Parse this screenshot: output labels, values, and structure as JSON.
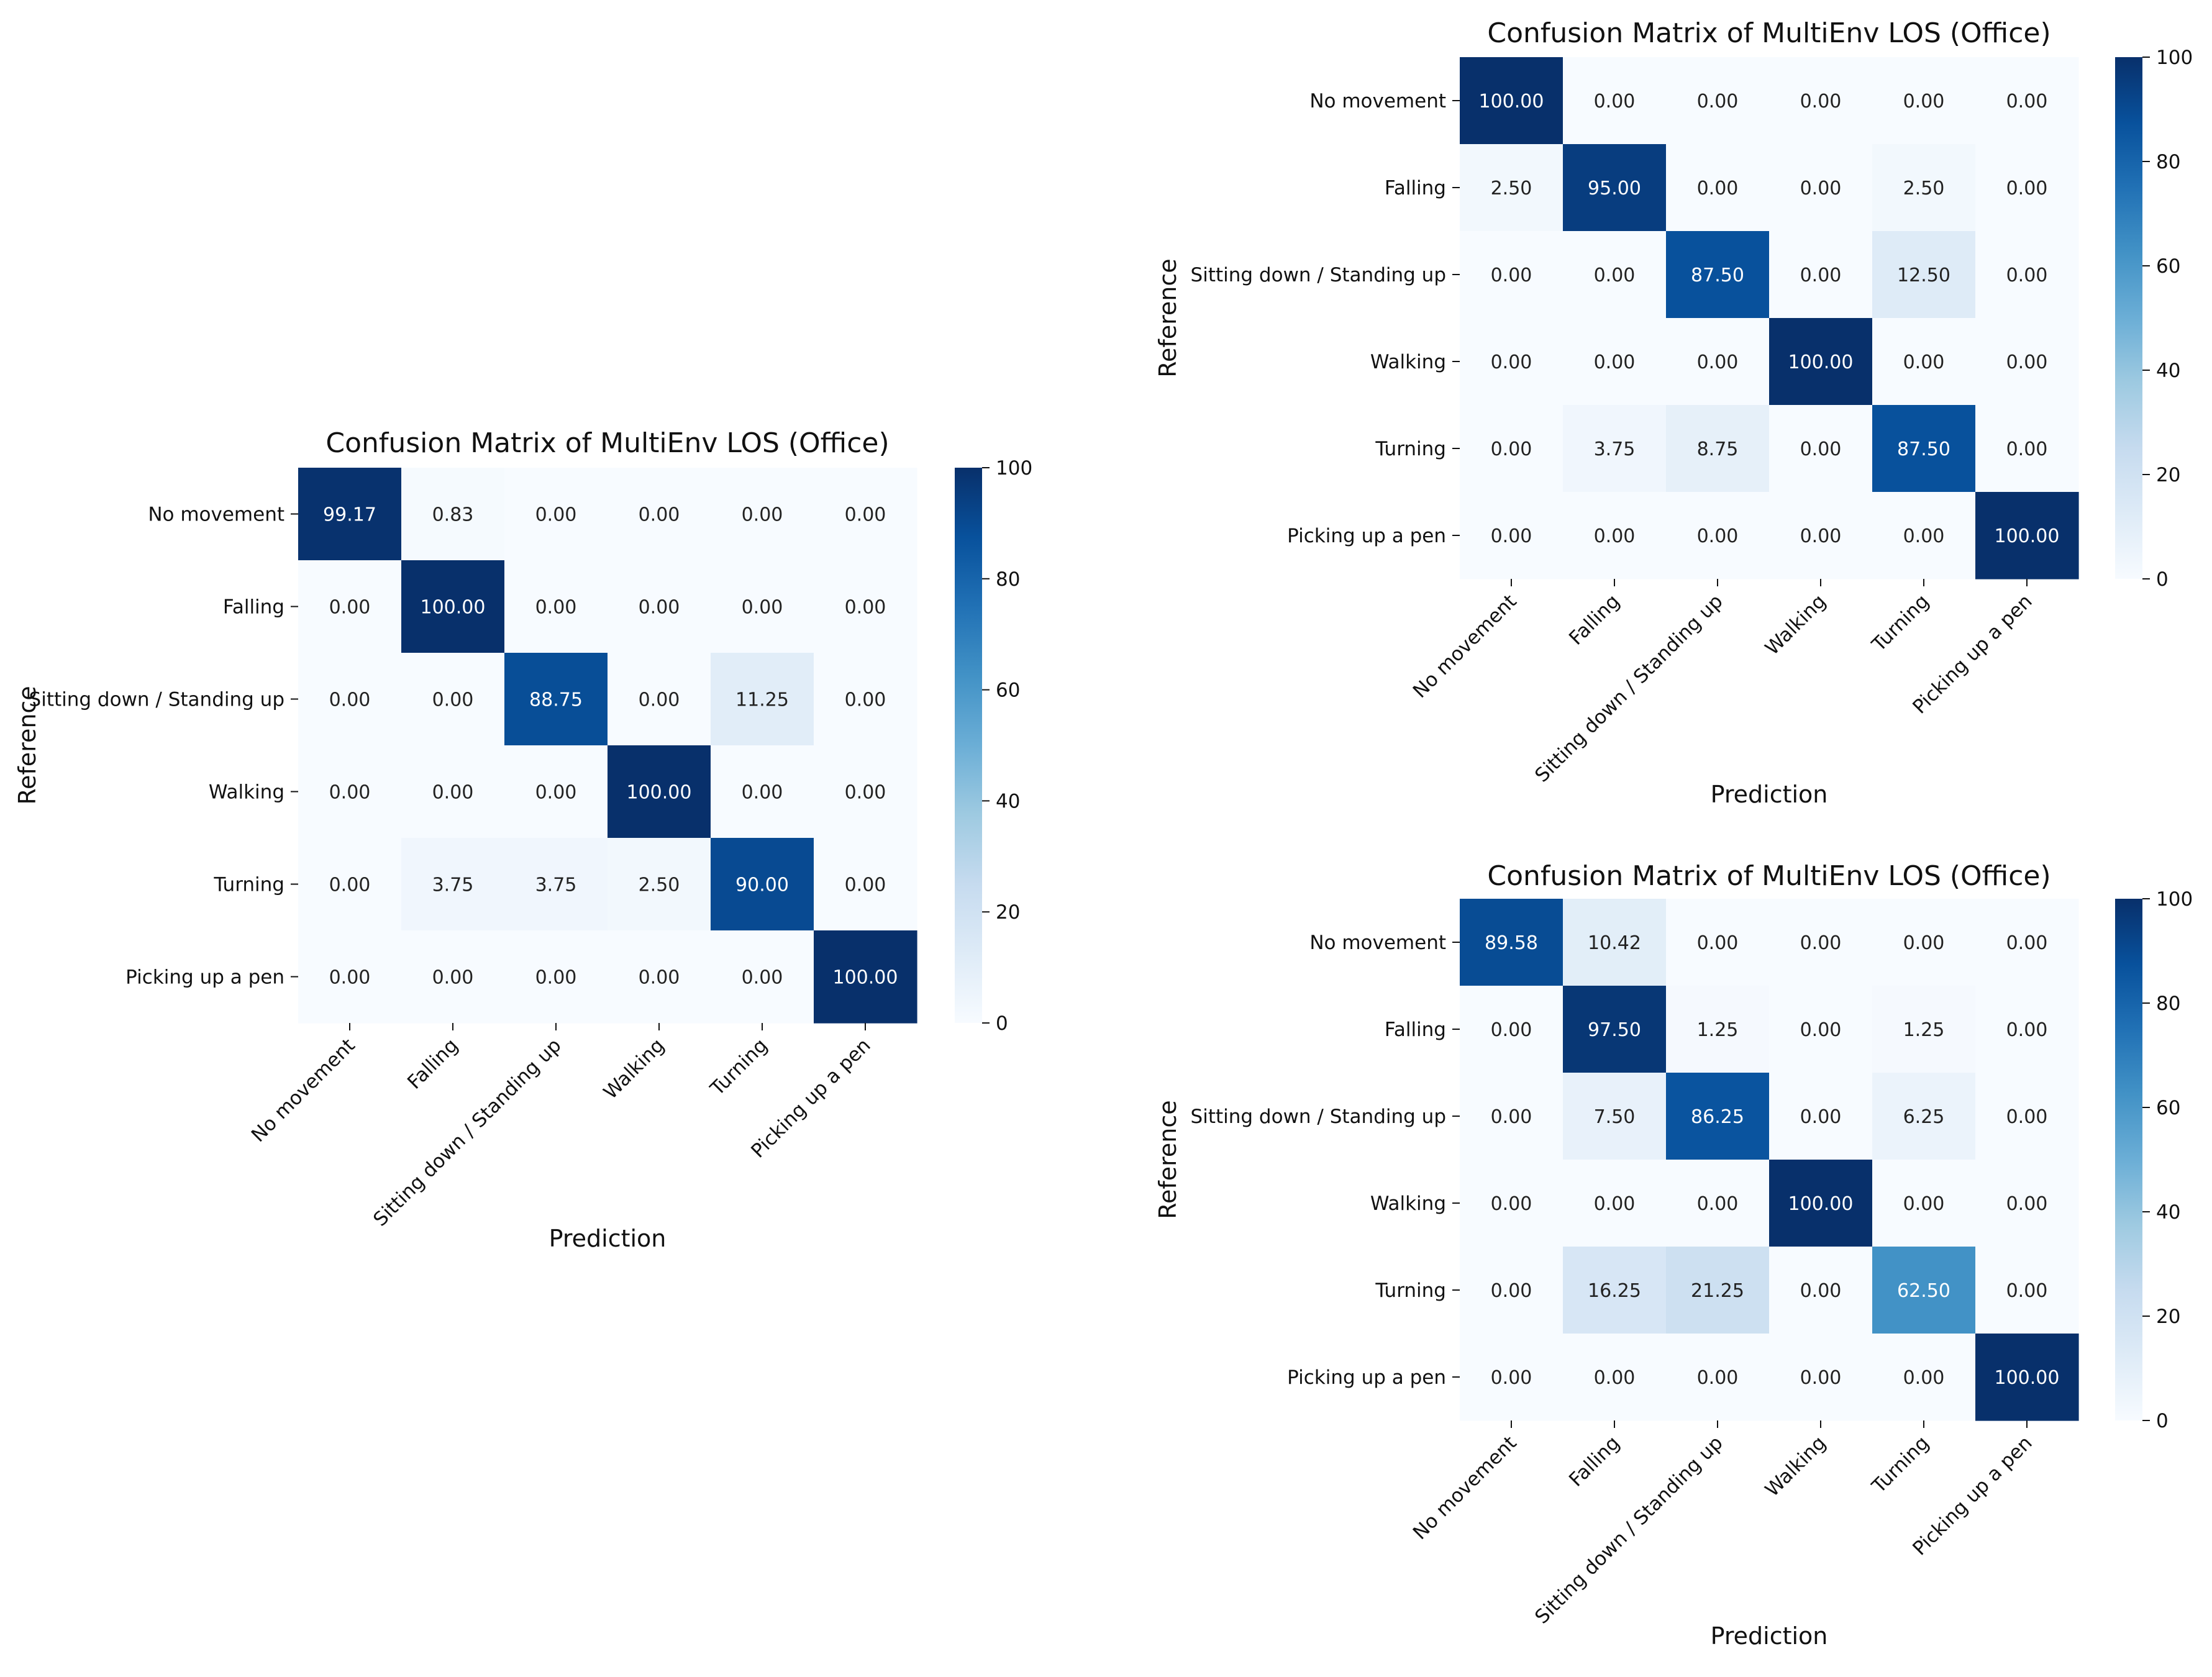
{
  "colors": {
    "cmap_low": "#f7fbff",
    "cmap_q1": "#deebf7",
    "cmap_q2": "#c6dbef",
    "cmap_q3": "#9ecae1",
    "cmap_q4": "#6baed6",
    "cmap_q5": "#4292c6",
    "cmap_q6": "#2171b5",
    "cmap_q7": "#08519c",
    "cmap_high": "#08306b",
    "text_dark": "#222222",
    "text_light": "#ffffff"
  },
  "chart_data": [
    {
      "type": "heatmap",
      "title": "Confusion Matrix of MultiEnv LOS (Office)",
      "xlabel": "Prediction",
      "ylabel": "Reference",
      "x_categories": [
        "No movement",
        "Falling",
        "Sitting down / Standing up",
        "Walking",
        "Turning",
        "Picking up a pen"
      ],
      "y_categories": [
        "No movement",
        "Falling",
        "Sitting down / Standing up",
        "Walking",
        "Turning",
        "Picking up a pen"
      ],
      "values": [
        [
          99.17,
          0.83,
          0.0,
          0.0,
          0.0,
          0.0
        ],
        [
          0.0,
          100.0,
          0.0,
          0.0,
          0.0,
          0.0
        ],
        [
          0.0,
          0.0,
          88.75,
          0.0,
          11.25,
          0.0
        ],
        [
          0.0,
          0.0,
          0.0,
          100.0,
          0.0,
          0.0
        ],
        [
          0.0,
          3.75,
          3.75,
          2.5,
          90.0,
          0.0
        ],
        [
          0.0,
          0.0,
          0.0,
          0.0,
          0.0,
          100.0
        ]
      ],
      "value_format": "2 decimals",
      "colorbar": {
        "min": 0,
        "max": 100,
        "ticks": [
          0,
          20,
          40,
          60,
          80,
          100
        ]
      }
    },
    {
      "type": "heatmap",
      "title": "Confusion Matrix of MultiEnv LOS (Office)",
      "xlabel": "Prediction",
      "ylabel": "Reference",
      "x_categories": [
        "No movement",
        "Falling",
        "Sitting down / Standing up",
        "Walking",
        "Turning",
        "Picking up a pen"
      ],
      "y_categories": [
        "No movement",
        "Falling",
        "Sitting down / Standing up",
        "Walking",
        "Turning",
        "Picking up a pen"
      ],
      "values": [
        [
          100.0,
          0.0,
          0.0,
          0.0,
          0.0,
          0.0
        ],
        [
          2.5,
          95.0,
          0.0,
          0.0,
          2.5,
          0.0
        ],
        [
          0.0,
          0.0,
          87.5,
          0.0,
          12.5,
          0.0
        ],
        [
          0.0,
          0.0,
          0.0,
          100.0,
          0.0,
          0.0
        ],
        [
          0.0,
          3.75,
          8.75,
          0.0,
          87.5,
          0.0
        ],
        [
          0.0,
          0.0,
          0.0,
          0.0,
          0.0,
          100.0
        ]
      ],
      "value_format": "2 decimals",
      "colorbar": {
        "min": 0,
        "max": 100,
        "ticks": [
          0,
          20,
          40,
          60,
          80,
          100
        ]
      }
    },
    {
      "type": "heatmap",
      "title": "Confusion Matrix of MultiEnv LOS (Office)",
      "xlabel": "Prediction",
      "ylabel": "Reference",
      "x_categories": [
        "No movement",
        "Falling",
        "Sitting down / Standing up",
        "Walking",
        "Turning",
        "Picking up a pen"
      ],
      "y_categories": [
        "No movement",
        "Falling",
        "Sitting down / Standing up",
        "Walking",
        "Turning",
        "Picking up a pen"
      ],
      "values": [
        [
          89.58,
          10.42,
          0.0,
          0.0,
          0.0,
          0.0
        ],
        [
          0.0,
          97.5,
          1.25,
          0.0,
          1.25,
          0.0
        ],
        [
          0.0,
          7.5,
          86.25,
          0.0,
          6.25,
          0.0
        ],
        [
          0.0,
          0.0,
          0.0,
          100.0,
          0.0,
          0.0
        ],
        [
          0.0,
          16.25,
          21.25,
          0.0,
          62.5,
          0.0
        ],
        [
          0.0,
          0.0,
          0.0,
          0.0,
          0.0,
          100.0
        ]
      ],
      "value_format": "2 decimals",
      "colorbar": {
        "min": 0,
        "max": 100,
        "ticks": [
          0,
          20,
          40,
          60,
          80,
          100
        ]
      }
    }
  ]
}
